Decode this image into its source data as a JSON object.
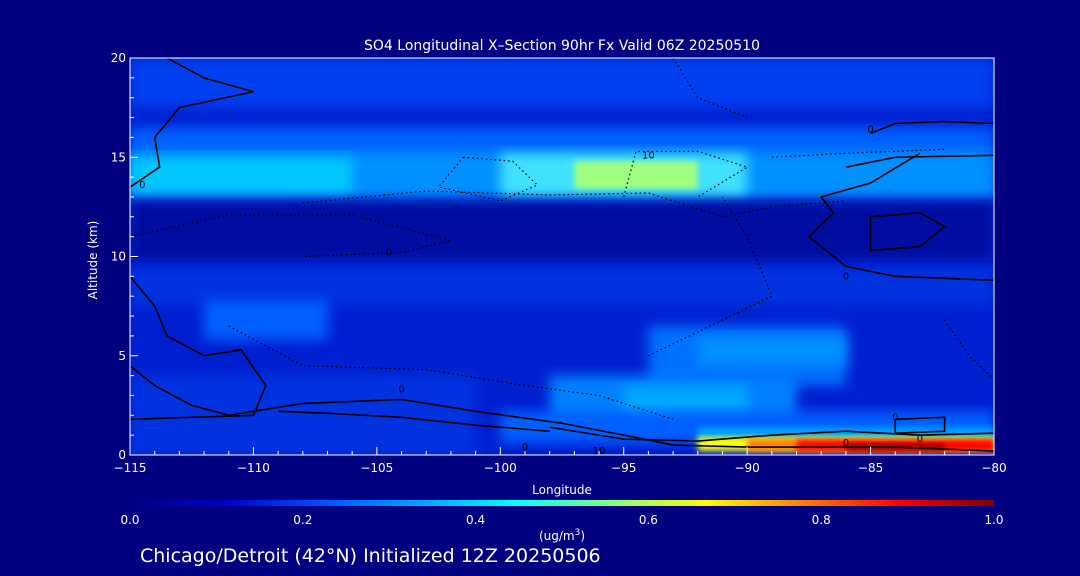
{
  "chart_data": {
    "type": "heatmap",
    "title": "SO4 Longitudinal X–Section 90hr  Fx Valid 06Z 20250510",
    "xlabel": "Longitude",
    "ylabel": "Altitude (km)",
    "xlim": [
      -115,
      -80
    ],
    "ylim": [
      0,
      20
    ],
    "xticks": [
      -115,
      -110,
      -105,
      -100,
      -95,
      -90,
      -85,
      -80
    ],
    "xtick_labels": [
      "−115",
      "−110",
      "−105",
      "−100",
      "−95",
      "−90",
      "−85",
      "−80"
    ],
    "yticks": [
      0,
      5,
      10,
      15,
      20
    ],
    "ytick_labels": [
      "0",
      "5",
      "10",
      "15",
      "20"
    ],
    "colorbar": {
      "min": 0.0,
      "max": 1.0,
      "ticks": [
        "0.0",
        "0.2",
        "0.4",
        "0.6",
        "0.8",
        "1.0"
      ],
      "label": "(ug/m",
      "label_sup": "3",
      "label_end": ")",
      "colormap": [
        "#000080",
        "#0000cd",
        "#0050ff",
        "#00a0ff",
        "#00ffff",
        "#80ff80",
        "#ffff00",
        "#ff8000",
        "#ff0000",
        "#800000"
      ]
    },
    "description_note": "SO4 concentration field: low values (~0.05-0.15) over most of the section, a band near 13.5-15 km around 0.35-0.5 peaking near -95 at ~0.6, and a near-surface maximum east of -92 exceeding 0.9 below 1 km.",
    "contour_labels": [
      "0",
      "0",
      "0",
      "10",
      "10",
      "0",
      "0",
      "0",
      "0",
      "0",
      "0"
    ],
    "grid": false
  },
  "footer": {
    "caption": "Chicago/Detroit (42°N) Initialized 12Z 20250506"
  },
  "colors": {
    "background": "#000080",
    "text": "#ffffff"
  }
}
